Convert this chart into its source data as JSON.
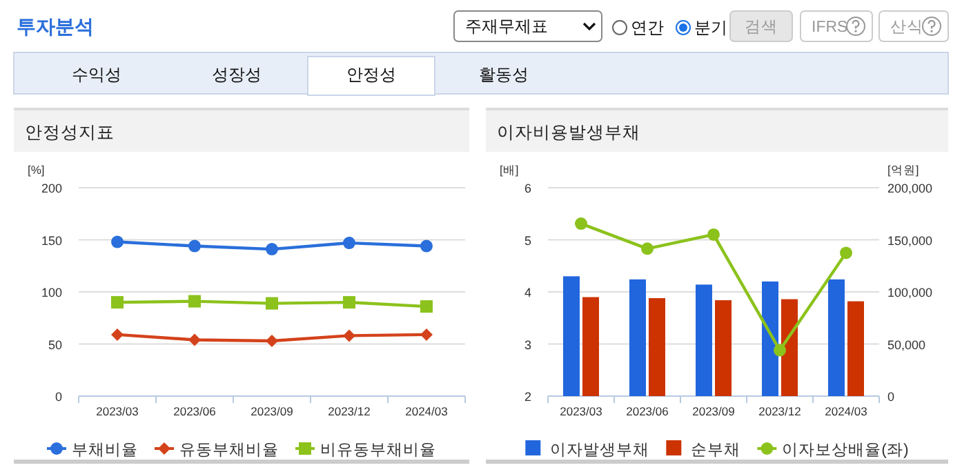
{
  "chart_data": [
    {
      "type": "other",
      "title": "투자분석",
      "annotations": [
        "주재무제표",
        "연간",
        "분기",
        "검색",
        "IFRS",
        "산식",
        "수익성",
        "성장성",
        "안정성",
        "활동성"
      ]
    },
    {
      "type": "line",
      "title": "안정성지표",
      "ylabel": "[%]",
      "categories": [
        "2023/03",
        "2023/06",
        "2023/09",
        "2023/12",
        "2024/03"
      ],
      "ylim": [
        0,
        200
      ],
      "yticks": [
        0,
        50,
        100,
        150,
        200
      ],
      "grid": "y",
      "legend": "bottom",
      "series": [
        {
          "name": "부채비율",
          "color": "#2a6fdb",
          "marker": "circle",
          "values": [
            148,
            144,
            141,
            147,
            144
          ]
        },
        {
          "name": "유동부채비율",
          "color": "#d4421b",
          "marker": "diamond",
          "values": [
            59,
            54,
            53,
            58,
            59
          ]
        },
        {
          "name": "비유동부채비율",
          "color": "#8cc21c",
          "marker": "square",
          "values": [
            90,
            91,
            89,
            90,
            86
          ]
        }
      ]
    },
    {
      "type": "bar",
      "title": "이자비용발생부채",
      "ylabel": "[배]",
      "y2label": "[억원]",
      "categories": [
        "2023/03",
        "2023/06",
        "2023/09",
        "2023/12",
        "2024/03"
      ],
      "ylim": [
        2,
        6
      ],
      "yticks": [
        2,
        3,
        4,
        5,
        6
      ],
      "y2lim": [
        0,
        200000
      ],
      "y2ticks": [
        0,
        {
          "value": 50000,
          "label": "50,000"
        },
        {
          "value": 100000,
          "label": "100,000"
        },
        {
          "value": 150000,
          "label": "150,000"
        },
        {
          "value": 200000,
          "label": "200,000"
        }
      ],
      "grid": "y",
      "legend": "bottom",
      "series": [
        {
          "name": "이자발생부채",
          "color": "#2266dd",
          "axis": "y2",
          "values": [
            115000,
            112000,
            107000,
            110000,
            112000
          ]
        },
        {
          "name": "순부채",
          "color": "#cc3300",
          "axis": "y2",
          "values": [
            95000,
            94000,
            92000,
            93000,
            91000
          ]
        },
        {
          "name": "이자보상배율(좌)",
          "type": "line",
          "color": "#8cc21c",
          "marker": "circle",
          "values": [
            5.31,
            4.83,
            5.1,
            2.88,
            4.75
          ]
        }
      ]
    }
  ]
}
